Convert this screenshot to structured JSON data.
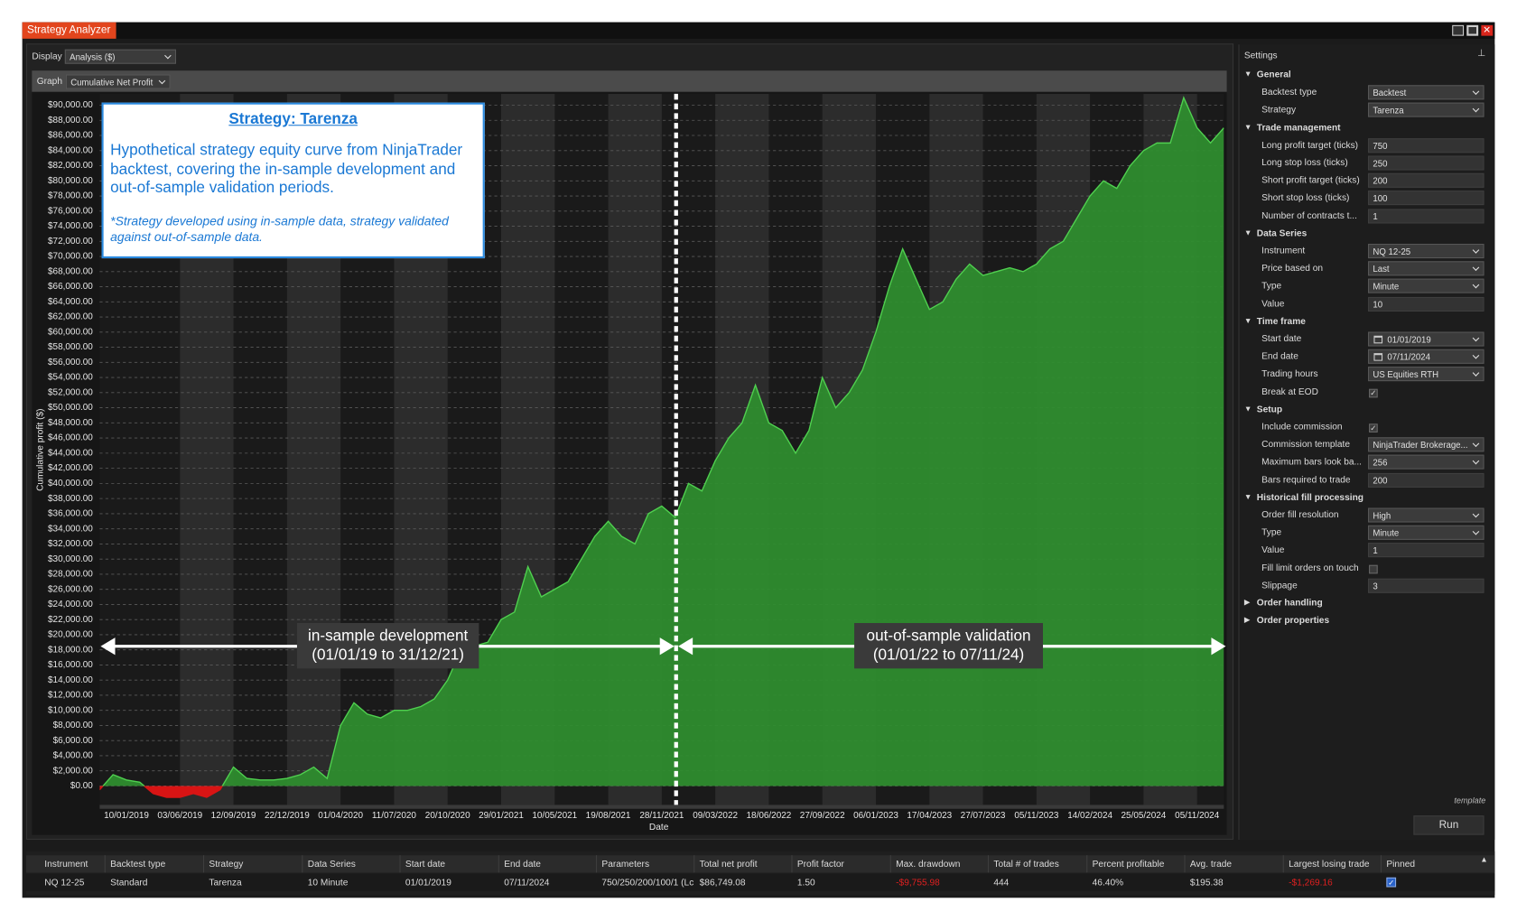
{
  "window": {
    "title": "Strategy Analyzer"
  },
  "toolbar": {
    "display_label": "Display",
    "display_value": "Analysis ($)",
    "graph_label": "Graph",
    "graph_value": "Cumulative Net Profit"
  },
  "annotation": {
    "title": "Strategy: Tarenza",
    "body": "Hypothetical strategy equity curve from NinjaTrader backtest, covering the in-sample development and out-of-sample validation periods.",
    "note": "*Strategy developed using in-sample data, strategy validated against out-of-sample data."
  },
  "periods": {
    "in_sample": {
      "line1": "in-sample development",
      "line2": "(01/01/19 to 31/12/21)"
    },
    "out_of_sample": {
      "line1": "out-of-sample validation",
      "line2": "(01/01/22 to 07/11/24)"
    }
  },
  "chart_data": {
    "type": "area",
    "y_label": "Cumulative profit ($)",
    "x_label": "Date",
    "color": "#2f8f2f",
    "line_color": "#4fd04f",
    "negative_color": "#d81414",
    "grid": true,
    "categories": [
      null,
      null,
      "10/01/2019",
      null,
      null,
      null,
      "03/06/2019",
      null,
      null,
      null,
      "12/09/2019",
      null,
      null,
      null,
      "22/12/2019",
      null,
      null,
      null,
      "01/04/2020",
      null,
      null,
      null,
      "11/07/2020",
      null,
      null,
      null,
      "20/10/2020",
      null,
      null,
      null,
      "29/01/2021",
      null,
      null,
      null,
      "10/05/2021",
      null,
      null,
      null,
      "19/08/2021",
      null,
      null,
      null,
      "28/11/2021",
      null,
      null,
      null,
      "09/03/2022",
      null,
      null,
      null,
      "18/06/2022",
      null,
      null,
      null,
      "27/09/2022",
      null,
      null,
      null,
      "06/01/2023",
      null,
      null,
      null,
      "17/04/2023",
      null,
      null,
      null,
      "27/07/2023",
      null,
      null,
      null,
      "05/11/2023",
      null,
      null,
      null,
      "14/02/2024",
      null,
      null,
      null,
      "25/05/2024",
      null,
      null,
      null,
      "05/11/2024",
      null,
      null
    ],
    "values": [
      -500,
      1500,
      800,
      500,
      -1000,
      -1500,
      -1500,
      -1000,
      -1500,
      -500,
      2500,
      1000,
      800,
      800,
      1000,
      1500,
      2500,
      1000,
      8000,
      11000,
      9500,
      9000,
      10000,
      10000,
      10500,
      11500,
      14000,
      18000,
      18500,
      19000,
      22000,
      23000,
      29000,
      25000,
      26000,
      27000,
      30000,
      33000,
      35000,
      33000,
      32000,
      36000,
      37000,
      35500,
      40000,
      39000,
      43000,
      46000,
      48000,
      53000,
      48000,
      47000,
      44000,
      47000,
      54000,
      50000,
      52000,
      55000,
      60000,
      66000,
      71000,
      67000,
      63000,
      64000,
      67000,
      69000,
      67500,
      68000,
      68500,
      68000,
      69000,
      71000,
      72000,
      75000,
      78000,
      80000,
      79000,
      82000,
      84000,
      85000,
      85000,
      91000,
      87000,
      85000,
      87000
    ],
    "ylim": [
      -2500,
      91500
    ],
    "yticks": [
      {
        "value": 0,
        "label": "$0.00"
      },
      {
        "value": 2000,
        "label": "$2,000.00"
      },
      {
        "value": 4000,
        "label": "$4,000.00"
      },
      {
        "value": 6000,
        "label": "$6,000.00"
      },
      {
        "value": 8000,
        "label": "$8,000.00"
      },
      {
        "value": 10000,
        "label": "$10,000.00"
      },
      {
        "value": 12000,
        "label": "$12,000.00"
      },
      {
        "value": 14000,
        "label": "$14,000.00"
      },
      {
        "value": 16000,
        "label": "$16,000.00"
      },
      {
        "value": 18000,
        "label": "$18,000.00"
      },
      {
        "value": 20000,
        "label": "$20,000.00"
      },
      {
        "value": 22000,
        "label": "$22,000.00"
      },
      {
        "value": 24000,
        "label": "$24,000.00"
      },
      {
        "value": 26000,
        "label": "$26,000.00"
      },
      {
        "value": 28000,
        "label": "$28,000.00"
      },
      {
        "value": 30000,
        "label": "$30,000.00"
      },
      {
        "value": 32000,
        "label": "$32,000.00"
      },
      {
        "value": 34000,
        "label": "$34,000.00"
      },
      {
        "value": 36000,
        "label": "$36,000.00"
      },
      {
        "value": 38000,
        "label": "$38,000.00"
      },
      {
        "value": 40000,
        "label": "$40,000.00"
      },
      {
        "value": 42000,
        "label": "$42,000.00"
      },
      {
        "value": 44000,
        "label": "$44,000.00"
      },
      {
        "value": 46000,
        "label": "$46,000.00"
      },
      {
        "value": 48000,
        "label": "$48,000.00"
      },
      {
        "value": 50000,
        "label": "$50,000.00"
      },
      {
        "value": 52000,
        "label": "$52,000.00"
      },
      {
        "value": 54000,
        "label": "$54,000.00"
      },
      {
        "value": 56000,
        "label": "$56,000.00"
      },
      {
        "value": 58000,
        "label": "$58,000.00"
      },
      {
        "value": 60000,
        "label": "$60,000.00"
      },
      {
        "value": 62000,
        "label": "$62,000.00"
      },
      {
        "value": 64000,
        "label": "$64,000.00"
      },
      {
        "value": 66000,
        "label": "$66,000.00"
      },
      {
        "value": 68000,
        "label": "$68,000.00"
      },
      {
        "value": 70000,
        "label": "$70,000.00"
      },
      {
        "value": 72000,
        "label": "$72,000.00"
      },
      {
        "value": 74000,
        "label": "$74,000.00"
      },
      {
        "value": 76000,
        "label": "$76,000.00"
      },
      {
        "value": 78000,
        "label": "$78,000.00"
      },
      {
        "value": 80000,
        "label": "$80,000.00"
      },
      {
        "value": 82000,
        "label": "$82,000.00"
      },
      {
        "value": 84000,
        "label": "$84,000.00"
      },
      {
        "value": 86000,
        "label": "$86,000.00"
      },
      {
        "value": 88000,
        "label": "$88,000.00"
      },
      {
        "value": 90000,
        "label": "$90,000.00"
      }
    ]
  },
  "settings": {
    "title": "Settings",
    "run": "Run",
    "footer": "template",
    "sections": [
      {
        "title": "General",
        "expanded": true,
        "rows": [
          {
            "label": "Backtest type",
            "value": "Backtest",
            "control": "dropdown"
          },
          {
            "label": "Strategy",
            "value": "Tarenza",
            "control": "dropdown"
          }
        ]
      },
      {
        "title": "Trade management",
        "expanded": true,
        "rows": [
          {
            "label": "Long profit target (ticks)",
            "value": "750",
            "control": "text"
          },
          {
            "label": "Long stop loss (ticks)",
            "value": "250",
            "control": "text"
          },
          {
            "label": "Short profit target (ticks)",
            "value": "200",
            "control": "text"
          },
          {
            "label": "Short stop loss (ticks)",
            "value": "100",
            "control": "text"
          },
          {
            "label": "Number of contracts t...",
            "value": "1",
            "control": "text"
          }
        ]
      },
      {
        "title": "Data Series",
        "expanded": true,
        "rows": [
          {
            "label": "Instrument",
            "value": "NQ 12-25",
            "control": "dropdown"
          },
          {
            "label": "Price based on",
            "value": "Last",
            "control": "dropdown"
          },
          {
            "label": "Type",
            "value": "Minute",
            "control": "dropdown"
          },
          {
            "label": "Value",
            "value": "10",
            "control": "text"
          }
        ]
      },
      {
        "title": "Time frame",
        "expanded": true,
        "rows": [
          {
            "label": "Start date",
            "value": "01/01/2019",
            "control": "date"
          },
          {
            "label": "End date",
            "value": "07/11/2024",
            "control": "date"
          },
          {
            "label": "Trading hours",
            "value": "US Equities RTH",
            "control": "dropdown"
          },
          {
            "label": "Break at EOD",
            "control": "checkbox",
            "checked": true
          }
        ]
      },
      {
        "title": "Setup",
        "expanded": true,
        "rows": [
          {
            "label": "Include commission",
            "control": "checkbox",
            "checked": true
          },
          {
            "label": "Commission template",
            "value": "NinjaTrader Brokerage...",
            "control": "dropdown"
          },
          {
            "label": "Maximum bars look ba...",
            "value": "256",
            "control": "dropdown"
          },
          {
            "label": "Bars required to trade",
            "value": "200",
            "control": "text"
          }
        ]
      },
      {
        "title": "Historical fill processing",
        "expanded": true,
        "rows": [
          {
            "label": "Order fill resolution",
            "value": "High",
            "control": "dropdown"
          },
          {
            "label": "Type",
            "value": "Minute",
            "control": "dropdown"
          },
          {
            "label": "Value",
            "value": "1",
            "control": "text"
          },
          {
            "label": "Fill limit orders on touch",
            "control": "checkbox",
            "checked": false
          },
          {
            "label": "Slippage",
            "value": "3",
            "control": "text"
          }
        ]
      },
      {
        "title": "Order handling",
        "expanded": false,
        "rows": []
      },
      {
        "title": "Order properties",
        "expanded": false,
        "rows": []
      }
    ]
  },
  "table": {
    "columns": [
      "Instrument",
      "Backtest type",
      "Strategy",
      "Data Series",
      "Start date",
      "End date",
      "Parameters",
      "Total net profit",
      "Profit factor",
      "Max. drawdown",
      "Total # of trades",
      "Percent profitable",
      "Avg. trade",
      "Largest losing trade",
      "Pinned"
    ],
    "rows": [
      [
        "NQ 12-25",
        "Standard",
        "Tarenza",
        "10 Minute",
        "01/01/2019",
        "07/11/2024",
        "750/250/200/100/1 (Lc",
        "$86,749.08",
        "1.50",
        "-$9,755.98",
        "444",
        "46.40%",
        "$195.38",
        "-$1,269.16",
        true
      ]
    ]
  }
}
